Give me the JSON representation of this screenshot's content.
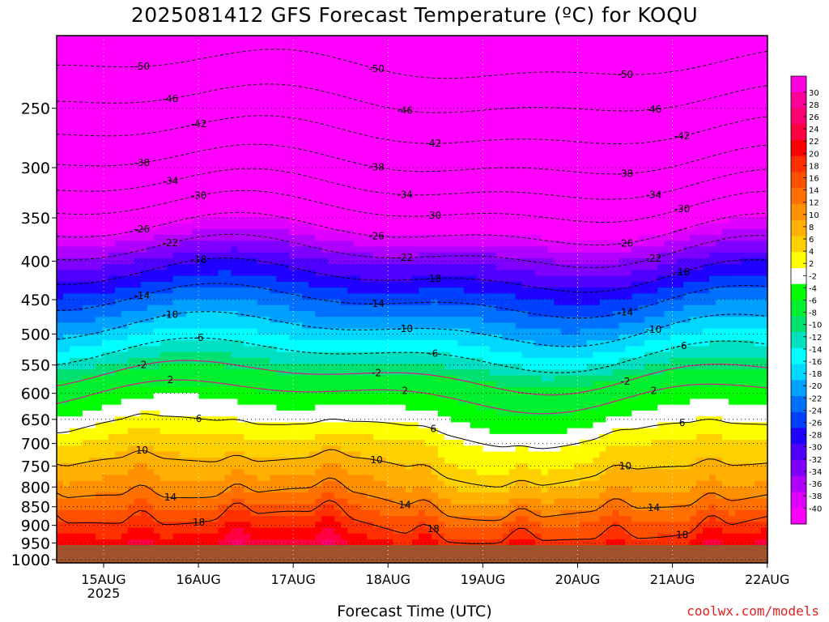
{
  "chart_data": {
    "type": "heatmap",
    "title": "2025081412 GFS Forecast Temperature (ºC) for KOQU",
    "xlabel": "Forecast Time (UTC)",
    "ylabel": "",
    "credit": "coolwx.com/models",
    "x_ticks": [
      "15AUG",
      "16AUG",
      "17AUG",
      "18AUG",
      "19AUG",
      "20AUG",
      "21AUG",
      "22AUG"
    ],
    "x_year_label": "2025",
    "y_ticks": [
      250,
      300,
      350,
      400,
      450,
      500,
      550,
      600,
      650,
      700,
      750,
      800,
      850,
      900,
      950,
      1000
    ],
    "y_scale": "log-pressure",
    "ylim": [
      1010,
      200
    ],
    "grid": true,
    "colorbar_ticks": [
      30,
      28,
      26,
      24,
      22,
      20,
      18,
      16,
      14,
      12,
      10,
      8,
      6,
      4,
      2,
      -2,
      -4,
      -6,
      -8,
      -10,
      -12,
      -14,
      -16,
      -18,
      -20,
      -22,
      -24,
      -26,
      -28,
      -30,
      -32,
      -34,
      -36,
      -38,
      -40
    ],
    "colorbar_colors": [
      "#ff00e0",
      "#ff0098",
      "#ff0070",
      "#ff0040",
      "#ff0000",
      "#ff3000",
      "#ff5000",
      "#ff7000",
      "#ff9000",
      "#ffb000",
      "#ffd000",
      "#ffff00",
      "#ffffff",
      "#00ff00",
      "#00f030",
      "#00e070",
      "#00e0c0",
      "#00ffff",
      "#00d8ff",
      "#00a0ff",
      "#0070ff",
      "#0040ff",
      "#2000ff",
      "#5000ff",
      "#8000ff",
      "#b000ff",
      "#e000ff",
      "#ff00ff"
    ],
    "ground_color": "#a0522d",
    "profile_pressure": [
      200,
      250,
      300,
      350,
      400,
      450,
      500,
      550,
      600,
      650,
      700,
      750,
      800,
      850,
      900,
      950,
      1000
    ],
    "profile_temp": [
      -53,
      -45,
      -37,
      -28,
      -20,
      -14,
      -9,
      -4,
      2,
      5,
      8,
      10,
      12,
      15,
      18,
      21,
      23
    ],
    "contour_levels": [
      -50,
      -46,
      -42,
      -38,
      -34,
      -30,
      -26,
      -22,
      -18,
      -14,
      -10,
      -6,
      -2,
      2,
      6,
      10,
      14,
      18
    ]
  }
}
